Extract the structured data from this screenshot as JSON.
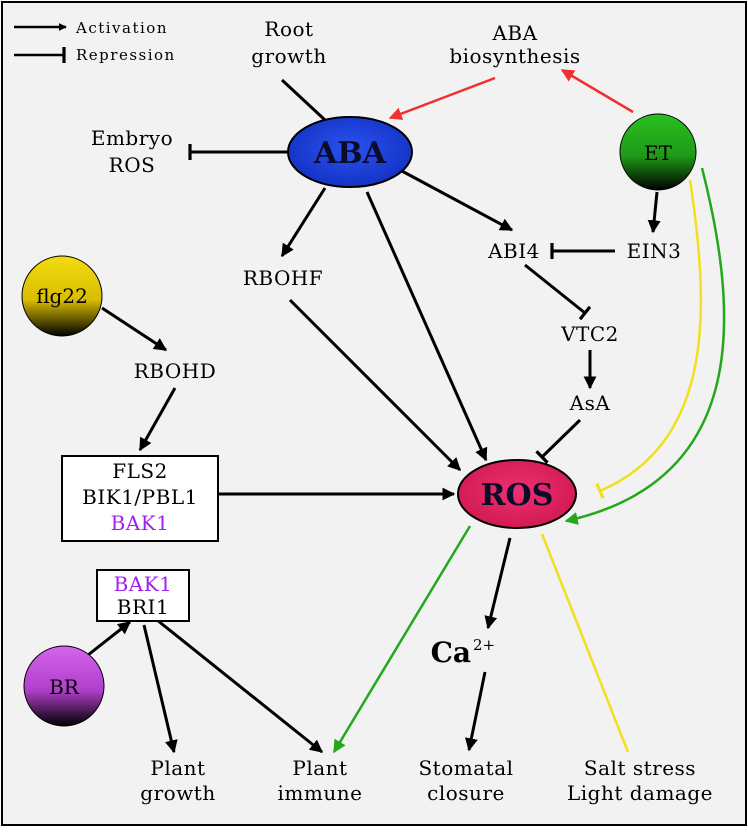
{
  "legend": {
    "activation": "Activation",
    "repression": "Repression"
  },
  "nodes": {
    "aba": "ABA",
    "ros": "ROS",
    "et": "ET",
    "flg22": "flg22",
    "br": "BR"
  },
  "labels": {
    "root_growth": [
      "Root",
      "growth"
    ],
    "aba_biosynthesis": [
      "ABA",
      "biosynthesis"
    ],
    "embryo_ros": [
      "Embryo",
      "ROS"
    ],
    "rbohf": "RBOHF",
    "abi4": "ABI4",
    "ein3": "EIN3",
    "rbohd": "RBOHD",
    "vtc2": "VTC2",
    "asa": "AsA",
    "receptor_complex": [
      "FLS2",
      "BIK1/PBL1",
      "BAK1"
    ],
    "br_receptor": [
      "BAK1",
      "BRI1"
    ],
    "calcium": "Ca",
    "calcium_sup": "2+",
    "plant_growth": [
      "Plant",
      "growth"
    ],
    "plant_immune": [
      "Plant",
      "immune"
    ],
    "stomatal_closure": [
      "Stomatal",
      "closure"
    ],
    "salt_light": [
      "Salt stress",
      "Light damage"
    ]
  },
  "colors": {
    "aba": "#1f3fd8",
    "ros": "#e0245e",
    "et": "#22a81a",
    "flg22": "#e0c800",
    "br": "#c84ee0",
    "bak1_text": "#a020f0",
    "red_arrow": "#f03030",
    "green_arrow": "#22a81a",
    "yellow_arrow": "#f0e020",
    "background": "#f2f2f2"
  }
}
